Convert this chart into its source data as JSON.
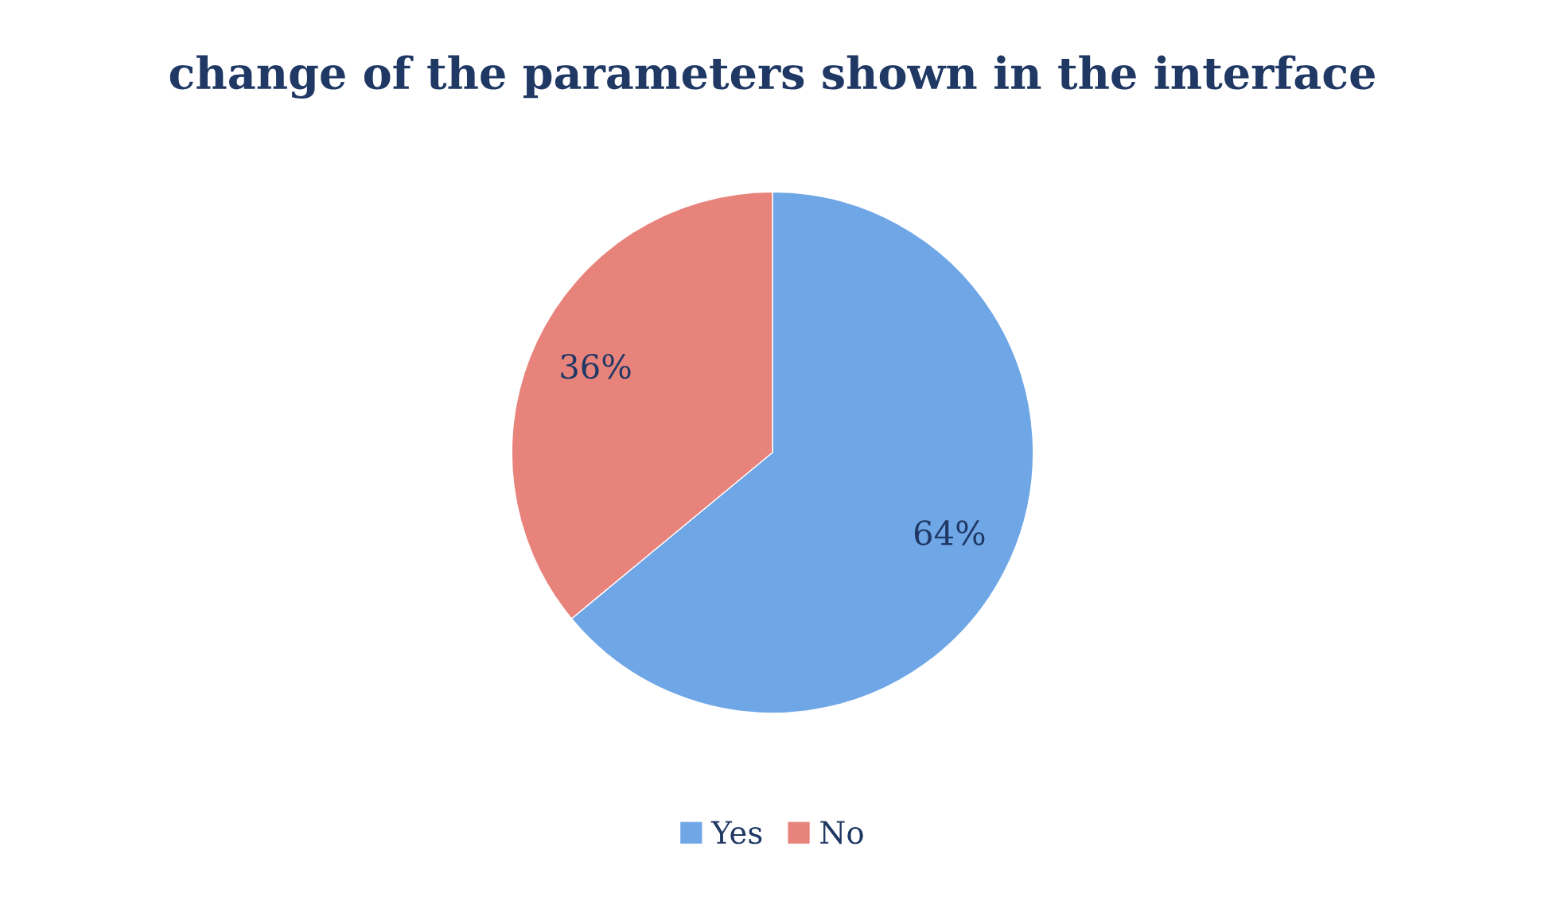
{
  "chart_data": {
    "type": "pie",
    "title": "change of the parameters shown in the interface",
    "categories": [
      "Yes",
      "No"
    ],
    "values": [
      64,
      36
    ],
    "colors": [
      "#6fa6e6",
      "#e8837c"
    ],
    "value_labels": [
      "64%",
      "36%"
    ],
    "legend": "bottom"
  }
}
